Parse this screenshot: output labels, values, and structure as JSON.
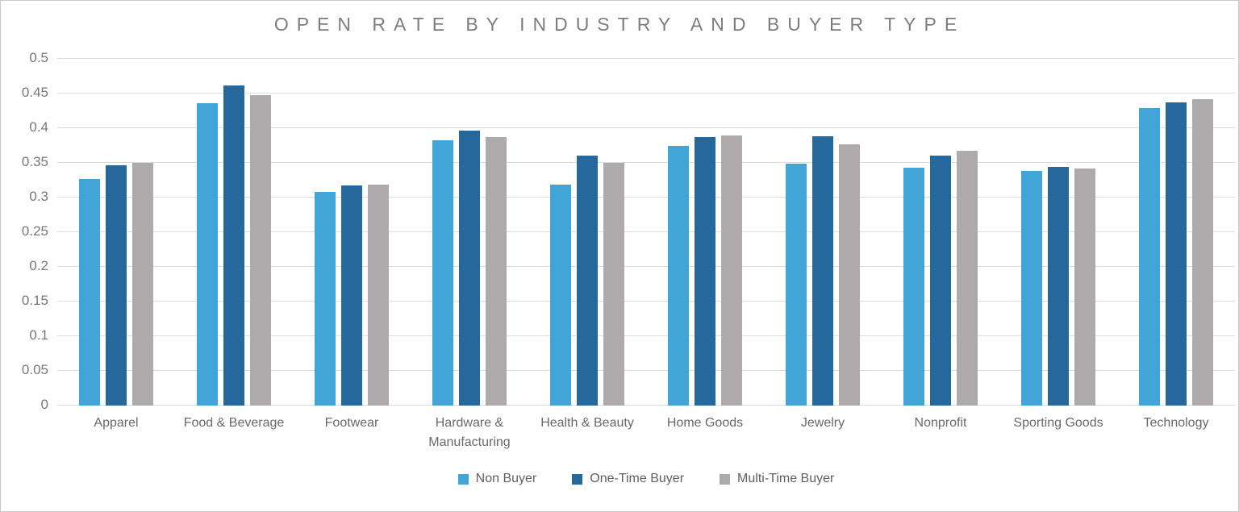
{
  "chart_data": {
    "type": "bar",
    "title": "OPEN RATE BY INDUSTRY AND BUYER TYPE",
    "xlabel": "",
    "ylabel": "",
    "ylim": [
      0,
      0.5
    ],
    "y_tick_labels": [
      "0",
      "0.05",
      "0.1",
      "0.15",
      "0.2",
      "0.25",
      "0.3",
      "0.35",
      "0.4",
      "0.45",
      "0.5"
    ],
    "y_tick_values": [
      0,
      0.05,
      0.1,
      0.15,
      0.2,
      0.25,
      0.3,
      0.35,
      0.4,
      0.45,
      0.5
    ],
    "grid": "horizontal",
    "legend_position": "bottom",
    "categories": [
      "Apparel",
      "Food & Beverage",
      "Footwear",
      "Hardware & Manufacturing",
      "Health & Beauty",
      "Home Goods",
      "Jewelry",
      "Nonprofit",
      "Sporting Goods",
      "Technology"
    ],
    "series": [
      {
        "name": "Non Buyer",
        "color": "#41A5D8",
        "values": [
          0.327,
          0.436,
          0.308,
          0.383,
          0.319,
          0.375,
          0.349,
          0.343,
          0.338,
          0.429
        ]
      },
      {
        "name": "One-Time Buyer",
        "color": "#24689E",
        "values": [
          0.347,
          0.462,
          0.317,
          0.396,
          0.361,
          0.387,
          0.389,
          0.361,
          0.344,
          0.437
        ]
      },
      {
        "name": "Multi-Time Buyer",
        "color": "#AEAAAB",
        "values": [
          0.35,
          0.448,
          0.319,
          0.387,
          0.35,
          0.39,
          0.377,
          0.367,
          0.342,
          0.442
        ]
      }
    ],
    "colors": {
      "grid": "#dcdcdc",
      "title_text": "#7b7d80",
      "axis_text": "#76777a",
      "category_text": "#68696c",
      "legend_text": "#5e5f62"
    }
  }
}
